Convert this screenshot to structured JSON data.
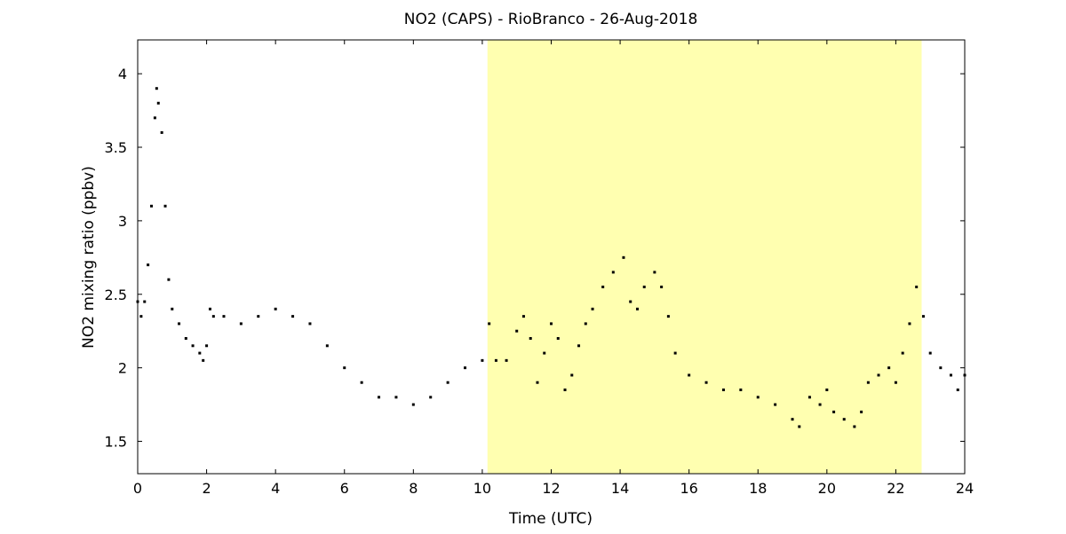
{
  "chart_data": {
    "type": "scatter",
    "title": "NO2 (CAPS) - RioBranco - 26-Aug-2018",
    "xlabel": "Time (UTC)",
    "ylabel": "NO2 mixing ratio (ppbv)",
    "xlim": [
      0,
      24
    ],
    "ylim": [
      1.28,
      4.23
    ],
    "xticks": [
      0,
      2,
      4,
      6,
      8,
      10,
      12,
      14,
      16,
      18,
      20,
      22,
      24
    ],
    "yticks": [
      1.5,
      2,
      2.5,
      3,
      3.5,
      4
    ],
    "ytick_labels": [
      "1.5",
      "2",
      "2.5",
      "3",
      "3.5",
      "4"
    ],
    "grid": false,
    "marker_color": "#000000",
    "highlight": {
      "x_start": 10.15,
      "x_end": 22.75,
      "color": "#ffffb0"
    },
    "points": [
      [
        0.0,
        2.45
      ],
      [
        0.1,
        2.35
      ],
      [
        0.2,
        2.45
      ],
      [
        0.3,
        2.7
      ],
      [
        0.4,
        3.1
      ],
      [
        0.5,
        3.7
      ],
      [
        0.55,
        3.9
      ],
      [
        0.6,
        3.8
      ],
      [
        0.7,
        3.6
      ],
      [
        0.8,
        3.1
      ],
      [
        0.9,
        2.6
      ],
      [
        1.0,
        2.4
      ],
      [
        1.2,
        2.3
      ],
      [
        1.4,
        2.2
      ],
      [
        1.6,
        2.15
      ],
      [
        1.8,
        2.1
      ],
      [
        1.9,
        2.05
      ],
      [
        2.0,
        2.15
      ],
      [
        2.1,
        2.4
      ],
      [
        2.2,
        2.35
      ],
      [
        2.5,
        2.35
      ],
      [
        3.0,
        2.3
      ],
      [
        3.5,
        2.35
      ],
      [
        4.0,
        2.4
      ],
      [
        4.5,
        2.35
      ],
      [
        5.0,
        2.3
      ],
      [
        5.5,
        2.15
      ],
      [
        6.0,
        2.0
      ],
      [
        6.5,
        1.9
      ],
      [
        7.0,
        1.8
      ],
      [
        7.5,
        1.8
      ],
      [
        8.0,
        1.75
      ],
      [
        8.5,
        1.8
      ],
      [
        9.0,
        1.9
      ],
      [
        9.5,
        2.0
      ],
      [
        10.0,
        2.05
      ],
      [
        10.2,
        2.3
      ],
      [
        10.4,
        2.05
      ],
      [
        10.7,
        2.05
      ],
      [
        11.0,
        2.25
      ],
      [
        11.2,
        2.35
      ],
      [
        11.4,
        2.2
      ],
      [
        11.6,
        1.9
      ],
      [
        11.8,
        2.1
      ],
      [
        12.0,
        2.3
      ],
      [
        12.2,
        2.2
      ],
      [
        12.4,
        1.85
      ],
      [
        12.6,
        1.95
      ],
      [
        12.8,
        2.15
      ],
      [
        13.0,
        2.3
      ],
      [
        13.2,
        2.4
      ],
      [
        13.5,
        2.55
      ],
      [
        13.8,
        2.65
      ],
      [
        14.1,
        2.75
      ],
      [
        14.3,
        2.45
      ],
      [
        14.5,
        2.4
      ],
      [
        14.7,
        2.55
      ],
      [
        15.0,
        2.65
      ],
      [
        15.2,
        2.55
      ],
      [
        15.4,
        2.35
      ],
      [
        15.6,
        2.1
      ],
      [
        16.0,
        1.95
      ],
      [
        16.5,
        1.9
      ],
      [
        17.0,
        1.85
      ],
      [
        17.5,
        1.85
      ],
      [
        18.0,
        1.8
      ],
      [
        18.5,
        1.75
      ],
      [
        19.0,
        1.65
      ],
      [
        19.2,
        1.6
      ],
      [
        19.5,
        1.8
      ],
      [
        19.8,
        1.75
      ],
      [
        20.0,
        1.85
      ],
      [
        20.2,
        1.7
      ],
      [
        20.5,
        1.65
      ],
      [
        20.8,
        1.6
      ],
      [
        21.0,
        1.7
      ],
      [
        21.2,
        1.9
      ],
      [
        21.5,
        1.95
      ],
      [
        21.8,
        2.0
      ],
      [
        22.0,
        1.9
      ],
      [
        22.2,
        2.1
      ],
      [
        22.4,
        2.3
      ],
      [
        22.6,
        2.55
      ],
      [
        22.8,
        2.35
      ],
      [
        23.0,
        2.1
      ],
      [
        23.3,
        2.0
      ],
      [
        23.6,
        1.95
      ],
      [
        23.8,
        1.85
      ],
      [
        24.0,
        1.95
      ]
    ]
  }
}
